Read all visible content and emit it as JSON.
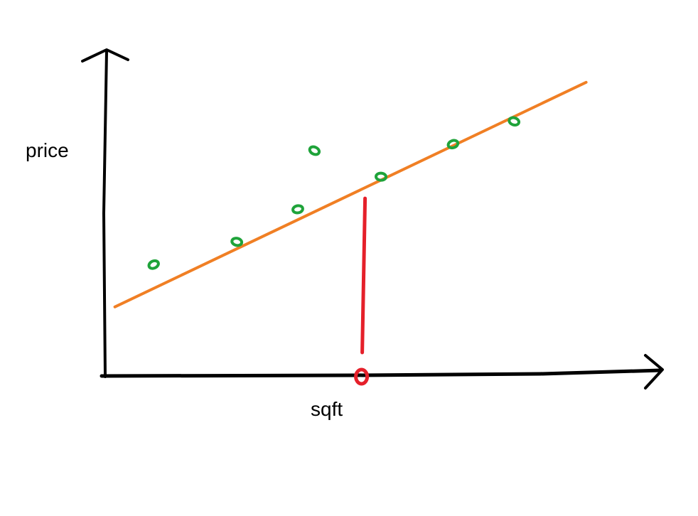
{
  "chart_data": {
    "type": "scatter",
    "title": "",
    "xlabel": "sqft",
    "ylabel": "price",
    "xlim": [
      0,
      100
    ],
    "ylim": [
      0,
      100
    ],
    "grid": false,
    "ticks": false,
    "legend": "none",
    "points": [
      {
        "x": 9,
        "y": 34
      },
      {
        "x": 24,
        "y": 41
      },
      {
        "x": 35,
        "y": 51
      },
      {
        "x": 38,
        "y": 69
      },
      {
        "x": 50,
        "y": 61
      },
      {
        "x": 63,
        "y": 71
      },
      {
        "x": 74,
        "y": 78
      }
    ],
    "fit_line": {
      "x": [
        2,
        87
      ],
      "y": [
        21,
        90
      ]
    },
    "query_x": 47,
    "query_y": 55
  },
  "colors": {
    "axes": "#000000",
    "points": "#1fa33a",
    "fit_line": "#f07f24",
    "query": "#e5202a",
    "background": "#ffffff"
  }
}
